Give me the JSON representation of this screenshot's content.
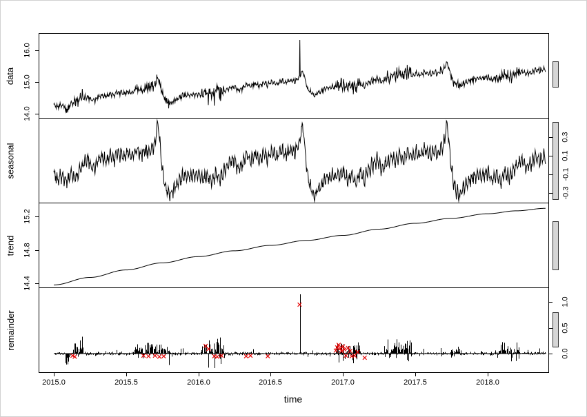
{
  "chart_data": {
    "type": "line",
    "subtype": "stl-decomposition",
    "xlabel": "time",
    "xlim": [
      2014.9,
      2018.42
    ],
    "t_start": 2015.0,
    "t_end": 2018.4,
    "points_per_year": 365,
    "xticks": [
      2015.0,
      2015.5,
      2016.0,
      2016.5,
      2017.0,
      2017.5,
      2018.0
    ],
    "xtick_labels": [
      "2015.0",
      "2015.5",
      "2016.0",
      "2016.5",
      "2017.0",
      "2017.5",
      "2018.0"
    ],
    "series_color": "#000000",
    "outlier_color": "#e60000",
    "range_bar_fill": "#d6d6d6",
    "range_bar_border": "#333333",
    "legend": "none",
    "grid": false,
    "seed": 20,
    "panels": [
      {
        "name": "data",
        "label": "data",
        "tick_side": "left",
        "ylim": [
          13.88,
          16.52
        ],
        "yticks": [
          14.0,
          15.0,
          16.0
        ],
        "ytick_labels": [
          "14.0",
          "15.0",
          "16.0"
        ],
        "derived": "trend+seasonal+remainder",
        "range_bar": {
          "top_frac": 0.33,
          "height_frac": 0.31
        }
      },
      {
        "name": "seasonal",
        "label": "seasonal",
        "tick_side": "right",
        "ylim": [
          -0.4,
          0.5
        ],
        "yticks": [
          0.3,
          0.1,
          -0.1,
          -0.3
        ],
        "ytick_labels": [
          "0.3",
          "0.1",
          "-0.1",
          "-0.3"
        ],
        "pattern": [
          [
            0,
            -0.08
          ],
          [
            0.03,
            -0.16
          ],
          [
            0.06,
            -0.1
          ],
          [
            0.09,
            -0.18
          ],
          [
            0.12,
            -0.08
          ],
          [
            0.15,
            -0.14
          ],
          [
            0.18,
            -0.04
          ],
          [
            0.21,
            0.02
          ],
          [
            0.24,
            0.06
          ],
          [
            0.27,
            -0.04
          ],
          [
            0.3,
            0.02
          ],
          [
            0.33,
            0.1
          ],
          [
            0.36,
            0.04
          ],
          [
            0.39,
            0.12
          ],
          [
            0.42,
            0.06
          ],
          [
            0.45,
            0.14
          ],
          [
            0.48,
            0.08
          ],
          [
            0.51,
            0.15
          ],
          [
            0.54,
            0.1
          ],
          [
            0.57,
            0.17
          ],
          [
            0.6,
            0.11
          ],
          [
            0.63,
            0.16
          ],
          [
            0.66,
            0.13
          ],
          [
            0.69,
            0.2
          ],
          [
            0.705,
            0.3
          ],
          [
            0.72,
            0.45
          ],
          [
            0.735,
            0.22
          ],
          [
            0.75,
            -0.05
          ],
          [
            0.77,
            -0.22
          ],
          [
            0.8,
            -0.33
          ],
          [
            0.83,
            -0.26
          ],
          [
            0.86,
            -0.18
          ],
          [
            0.89,
            -0.13
          ],
          [
            0.92,
            -0.1
          ],
          [
            0.95,
            -0.12
          ],
          [
            0.98,
            -0.09
          ],
          [
            1.0,
            -0.08
          ]
        ],
        "weekly_amp": 0.05,
        "noise_sd": 0.032,
        "clamp": [
          -0.385,
          0.48
        ],
        "range_bar": {
          "top_frac": 0.05,
          "height_frac": 0.91
        }
      },
      {
        "name": "trend",
        "label": "trend",
        "tick_side": "left",
        "ylim": [
          14.35,
          15.36
        ],
        "yticks": [
          14.4,
          14.8,
          15.2
        ],
        "ytick_labels": [
          "14.4",
          "14.8",
          "15.2"
        ],
        "keypoints": [
          [
            2015.0,
            14.38
          ],
          [
            2015.25,
            14.47
          ],
          [
            2015.5,
            14.56
          ],
          [
            2015.75,
            14.645
          ],
          [
            2016.0,
            14.72
          ],
          [
            2016.25,
            14.79
          ],
          [
            2016.5,
            14.855
          ],
          [
            2016.75,
            14.915
          ],
          [
            2017.0,
            14.975
          ],
          [
            2017.25,
            15.05
          ],
          [
            2017.5,
            15.12
          ],
          [
            2017.75,
            15.18
          ],
          [
            2018.0,
            15.235
          ],
          [
            2018.2,
            15.27
          ],
          [
            2018.4,
            15.3
          ]
        ],
        "range_bar": {
          "top_frac": 0.22,
          "height_frac": 0.57
        }
      },
      {
        "name": "remainder",
        "label": "remainder",
        "tick_side": "right",
        "ylim": [
          -0.36,
          1.27
        ],
        "yticks": [
          1.0,
          0.5,
          0.0
        ],
        "ytick_labels": [
          "1.0",
          "0.5",
          "0.0"
        ],
        "noise_amp": 0.04,
        "tail_prob": 0.035,
        "tail_amp": 0.16,
        "bursts": [
          [
            2015.075,
            2015.115,
            0.28,
            0.06
          ],
          [
            2015.13,
            2015.2,
            0.3,
            0.92
          ],
          [
            2015.55,
            2015.8,
            0.2,
            0.85
          ],
          [
            2016.02,
            2016.18,
            0.3,
            0.85
          ],
          [
            2016.95,
            2017.12,
            0.2,
            0.75
          ],
          [
            2017.28,
            2017.47,
            0.3,
            0.9
          ],
          [
            2017.74,
            2017.82,
            0.14,
            0.8
          ],
          [
            2018.05,
            2018.22,
            0.2,
            0.8
          ]
        ],
        "spikes": [
          [
            2016.7,
            1.15
          ]
        ],
        "outliers": [
          [
            2015.13,
            -0.04
          ],
          [
            2015.145,
            -0.06
          ],
          [
            2015.62,
            -0.04
          ],
          [
            2015.655,
            -0.05
          ],
          [
            2015.7,
            -0.04
          ],
          [
            2015.73,
            -0.06
          ],
          [
            2015.76,
            -0.05
          ],
          [
            2016.05,
            0.15
          ],
          [
            2016.07,
            0.09
          ],
          [
            2016.11,
            -0.05
          ],
          [
            2016.13,
            -0.06
          ],
          [
            2016.16,
            -0.04
          ],
          [
            2016.33,
            -0.05
          ],
          [
            2016.36,
            -0.04
          ],
          [
            2016.48,
            -0.05
          ],
          [
            2016.7,
            0.95
          ],
          [
            2016.95,
            0.06
          ],
          [
            2016.96,
            0.12
          ],
          [
            2016.97,
            0.17
          ],
          [
            2016.98,
            0.1
          ],
          [
            2016.99,
            0.05
          ],
          [
            2017.0,
            0.14
          ],
          [
            2017.01,
            0.08
          ],
          [
            2017.02,
            -0.04
          ],
          [
            2017.035,
            0.11
          ],
          [
            2017.05,
            0.05
          ],
          [
            2017.06,
            -0.05
          ],
          [
            2017.08,
            -0.04
          ],
          [
            2017.1,
            0.03
          ],
          [
            2017.15,
            -0.08
          ]
        ],
        "range_bar": {
          "top_frac": 0.29,
          "height_frac": 0.41
        }
      }
    ]
  }
}
